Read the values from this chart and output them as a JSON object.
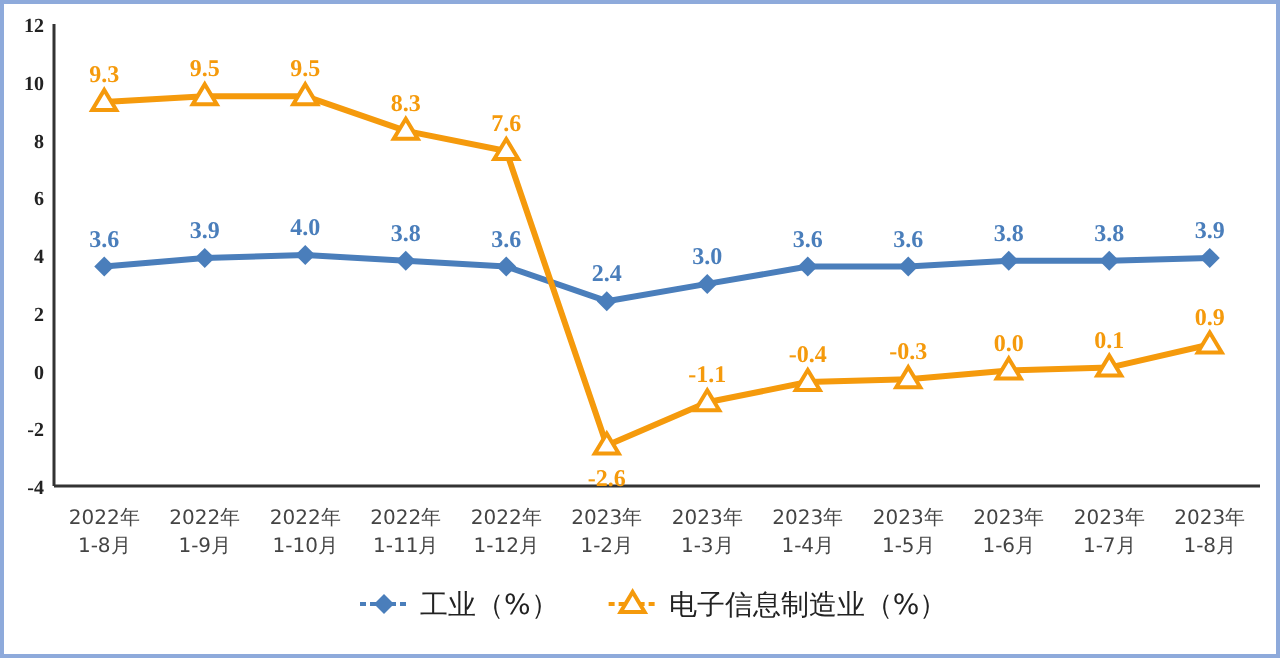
{
  "chart_data": {
    "type": "line",
    "categories": [
      "2022年 1-8月",
      "2022年 1-9月",
      "2022年 1-10月",
      "2022年 1-11月",
      "2022年 1-12月",
      "2023年 1-2月",
      "2023年 1-3月",
      "2023年 1-4月",
      "2023年 1-5月",
      "2023年 1-6月",
      "2023年 1-7月",
      "2023年 1-8月"
    ],
    "series": [
      {
        "name": "工业（%）",
        "color": "#4a7ebb",
        "marker": "diamond",
        "values": [
          3.6,
          3.9,
          4.0,
          3.8,
          3.6,
          2.4,
          3.0,
          3.6,
          3.6,
          3.8,
          3.8,
          3.9
        ],
        "value_labels": [
          "3.6",
          "3.9",
          "4.0",
          "3.8",
          "3.6",
          "2.4",
          "3.0",
          "3.6",
          "3.6",
          "3.8",
          "3.8",
          "3.9"
        ]
      },
      {
        "name": "电子信息制造业（%）",
        "color": "#f59a0c",
        "marker": "triangle",
        "values": [
          9.3,
          9.5,
          9.5,
          8.3,
          7.6,
          -2.6,
          -1.1,
          -0.4,
          -0.3,
          0.0,
          0.1,
          0.9
        ],
        "value_labels": [
          "9.3",
          "9.5",
          "9.5",
          "8.3",
          "7.6",
          "-2.6",
          "-1.1",
          "-0.4",
          "-0.3",
          "0.0",
          "0.1",
          "0.9"
        ]
      }
    ],
    "ylim": [
      -4,
      12
    ],
    "yticks": [
      -4,
      -2,
      0,
      2,
      4,
      6,
      8,
      10,
      12
    ],
    "legend": "bottom",
    "grid": false
  }
}
